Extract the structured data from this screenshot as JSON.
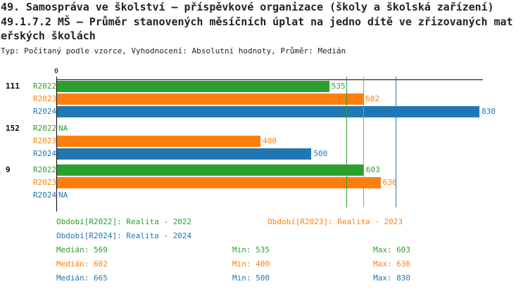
{
  "header": {
    "title_line1": "49. Samospráva ve školství – příspěvkové organizace (školy a školská zařízení)",
    "title_line2": "49.1.7.2 MŠ – Průměr stanovených měsíčních úplat na jedno dítě ve zřizovaných mat",
    "title_line3": "eřských školách",
    "subtitle": "Typ: Počítaný podle vzorce, Vyhodnocení: Absolutní hodnoty, Průměr: Medián"
  },
  "chart_data": {
    "type": "bar",
    "orientation": "horizontal",
    "axis_tick": "0",
    "xlim": [
      0,
      830
    ],
    "categories": [
      "111",
      "152",
      "9"
    ],
    "series": [
      {
        "name": "R2022",
        "color": "#2ca02c",
        "values": [
          535,
          null,
          603
        ]
      },
      {
        "name": "R2023",
        "color": "#ff7f0e",
        "values": [
          602,
          400,
          636
        ]
      },
      {
        "name": "R2024",
        "color": "#1f77b4",
        "values": [
          830,
          500,
          null
        ]
      }
    ],
    "na_label": "NA",
    "median_lines": [
      {
        "series": "R2022",
        "value": 569
      },
      {
        "series": "R2023",
        "value": 602
      },
      {
        "series": "R2024",
        "value": 665
      }
    ]
  },
  "legend": {
    "items": [
      {
        "text": "Období[R2022]: Realita - 2022",
        "color": "#2ca02c"
      },
      {
        "text": "Období[R2023]: Realita - 2023",
        "color": "#ff7f0e"
      },
      {
        "text": "Období[R2024]: Realita - 2024",
        "color": "#1f77b4"
      }
    ]
  },
  "stats": [
    {
      "median": "Medián: 569",
      "min": "Min: 535",
      "max": "Max: 603",
      "color": "#2ca02c"
    },
    {
      "median": "Medián: 602",
      "min": "Min: 400",
      "max": "Max: 636",
      "color": "#ff7f0e"
    },
    {
      "median": "Medián: 665",
      "min": "Min: 500",
      "max": "Max: 830",
      "color": "#1f77b4"
    }
  ]
}
